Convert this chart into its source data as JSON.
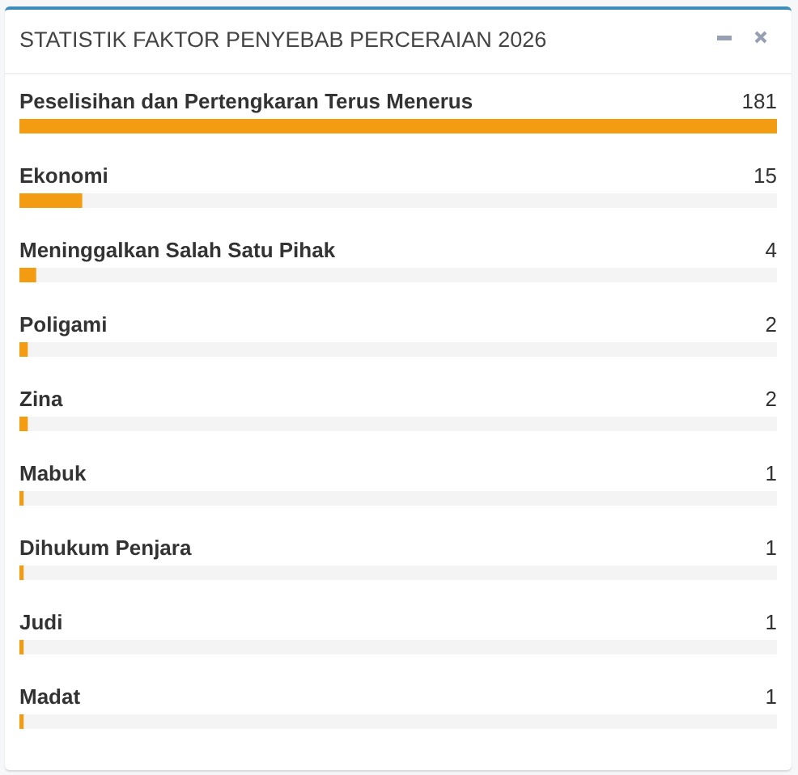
{
  "chart_data": {
    "type": "bar",
    "orientation": "horizontal",
    "title": "STATISTIK FAKTOR PENYEBAB PERCERAIAN 2026",
    "categories": [
      "Peselisihan dan Pertengkaran Terus Menerus",
      "Ekonomi",
      "Meninggalkan Salah Satu Pihak",
      "Poligami",
      "Zina",
      "Mabuk",
      "Dihukum Penjara",
      "Judi",
      "Madat"
    ],
    "values": [
      181,
      15,
      4,
      2,
      2,
      1,
      1,
      1,
      1
    ],
    "color": "#f39c12",
    "data_labels": true
  }
}
